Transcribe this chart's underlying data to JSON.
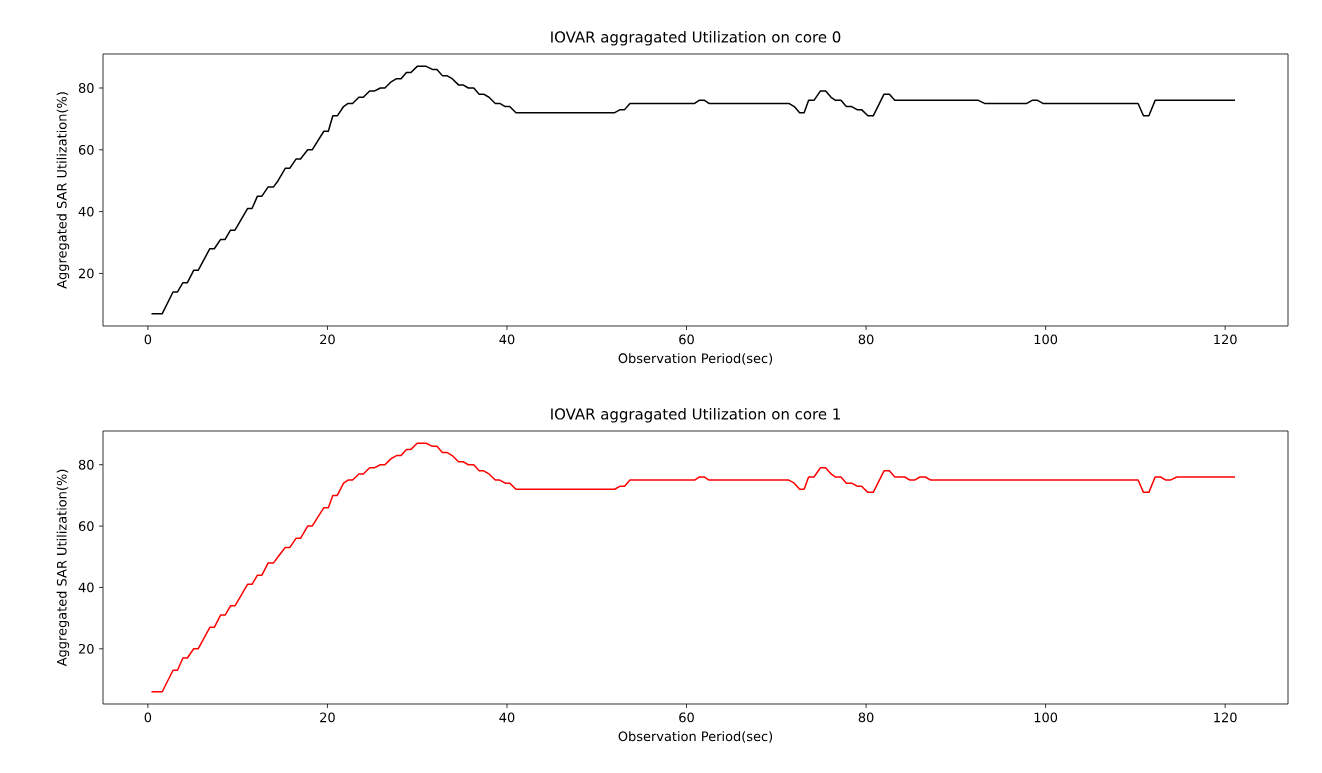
{
  "chart_data": [
    {
      "type": "line",
      "title": "IOVAR aggragated Utilization on core 0",
      "xlabel": "Observation Period(sec)",
      "ylabel": "Aggregated SAR Utilization(%)",
      "x": [
        0.4,
        1.6,
        2.8,
        3.3,
        3.9,
        4.4,
        5.1,
        5.6,
        6.9,
        7.4,
        8.1,
        8.6,
        9.2,
        9.7,
        11.1,
        11.6,
        12.2,
        12.7,
        13.4,
        14.0,
        14.5,
        15.3,
        15.8,
        16.5,
        17.0,
        17.8,
        18.3,
        19.6,
        20.1,
        20.6,
        21.1,
        21.8,
        22.3,
        22.8,
        23.5,
        24.0,
        24.7,
        25.2,
        25.9,
        26.4,
        27.1,
        27.7,
        28.2,
        28.8,
        29.3,
        30.0,
        31.0,
        31.7,
        32.2,
        32.8,
        33.3,
        33.9,
        34.6,
        35.1,
        35.7,
        36.3,
        36.9,
        37.4,
        38.0,
        38.7,
        39.2,
        39.8,
        40.3,
        41.0,
        52.0,
        52.6,
        53.1,
        53.7,
        60.9,
        61.4,
        62.0,
        62.5,
        71.4,
        72.0,
        72.6,
        73.1,
        73.6,
        74.2,
        74.9,
        75.5,
        76.1,
        76.6,
        77.2,
        77.8,
        78.4,
        79.0,
        79.5,
        80.2,
        80.8,
        82.0,
        82.6,
        83.2,
        92.5,
        93.2,
        97.9,
        98.5,
        99.1,
        99.7,
        110.3,
        110.9,
        111.5,
        112.2,
        121.1
      ],
      "series": [
        {
          "color": "#000000",
          "values": [
            7,
            7,
            14,
            14,
            17,
            17,
            21,
            21,
            28,
            28,
            31,
            31,
            34,
            34,
            41,
            41,
            45,
            45,
            48,
            48,
            50,
            54,
            54,
            57,
            57,
            60,
            60,
            66,
            66,
            71,
            71,
            74,
            75,
            75,
            77,
            77,
            79,
            79,
            80,
            80,
            82,
            83,
            83,
            85,
            85,
            87,
            87,
            86,
            86,
            84,
            84,
            83,
            81,
            81,
            80,
            80,
            78,
            78,
            77,
            75,
            75,
            74,
            74,
            72,
            72,
            73,
            73,
            75,
            75,
            76,
            76,
            75,
            75,
            74,
            72,
            72,
            76,
            76,
            79,
            79,
            77,
            76,
            76,
            74,
            74,
            73,
            73,
            71,
            71,
            78,
            78,
            76,
            76,
            75,
            75,
            76,
            76,
            75,
            75,
            71,
            71,
            76,
            76
          ]
        }
      ],
      "xlim": [
        -5,
        127
      ],
      "ylim": [
        3,
        91
      ],
      "xticks": [
        0,
        20,
        40,
        60,
        80,
        100,
        120
      ],
      "yticks": [
        20,
        40,
        60,
        80
      ]
    },
    {
      "type": "line",
      "title": "IOVAR aggragated Utilization on core 1",
      "xlabel": "Observation Period(sec)",
      "ylabel": "Aggregated SAR Utilization(%)",
      "x": [
        0.4,
        1.6,
        2.8,
        3.3,
        3.9,
        4.4,
        5.1,
        5.6,
        6.9,
        7.4,
        8.1,
        8.6,
        9.2,
        9.7,
        11.1,
        11.6,
        12.2,
        12.7,
        13.4,
        14.0,
        14.5,
        15.3,
        15.8,
        16.5,
        17.0,
        17.8,
        18.3,
        19.6,
        20.1,
        20.6,
        21.1,
        21.8,
        22.3,
        22.8,
        23.5,
        24.0,
        24.7,
        25.2,
        25.9,
        26.4,
        27.1,
        27.7,
        28.2,
        28.8,
        29.3,
        30.0,
        31.0,
        31.7,
        32.2,
        32.8,
        33.3,
        33.9,
        34.6,
        35.1,
        35.7,
        36.3,
        36.9,
        37.4,
        38.0,
        38.7,
        39.2,
        39.8,
        40.3,
        41.0,
        52.0,
        52.6,
        53.1,
        53.7,
        60.9,
        61.4,
        62.0,
        62.5,
        71.4,
        72.0,
        72.6,
        73.1,
        73.6,
        74.2,
        74.9,
        75.5,
        76.1,
        76.6,
        77.2,
        77.8,
        78.4,
        79.0,
        79.5,
        80.2,
        80.8,
        82.0,
        82.6,
        83.2,
        84.3,
        84.9,
        85.4,
        86.0,
        86.6,
        87.2,
        110.3,
        110.9,
        111.5,
        112.2,
        112.8,
        113.4,
        113.9,
        114.6,
        121.1
      ],
      "series": [
        {
          "color": "#ff0000",
          "values": [
            6,
            6,
            13,
            13,
            17,
            17,
            20,
            20,
            27,
            27,
            31,
            31,
            34,
            34,
            41,
            41,
            44,
            44,
            48,
            48,
            50,
            53,
            53,
            56,
            56,
            60,
            60,
            66,
            66,
            70,
            70,
            74,
            75,
            75,
            77,
            77,
            79,
            79,
            80,
            80,
            82,
            83,
            83,
            85,
            85,
            87,
            87,
            86,
            86,
            84,
            84,
            83,
            81,
            81,
            80,
            80,
            78,
            78,
            77,
            75,
            75,
            74,
            74,
            72,
            72,
            73,
            73,
            75,
            75,
            76,
            76,
            75,
            75,
            74,
            72,
            72,
            76,
            76,
            79,
            79,
            77,
            76,
            76,
            74,
            74,
            73,
            73,
            71,
            71,
            78,
            78,
            76,
            76,
            75,
            75,
            76,
            76,
            75,
            75,
            71,
            71,
            76,
            76,
            75,
            75,
            76,
            76
          ]
        }
      ],
      "xlim": [
        -5,
        127
      ],
      "ylim": [
        2,
        91
      ],
      "xticks": [
        0,
        20,
        40,
        60,
        80,
        100,
        120
      ],
      "yticks": [
        20,
        40,
        60,
        80
      ]
    }
  ]
}
